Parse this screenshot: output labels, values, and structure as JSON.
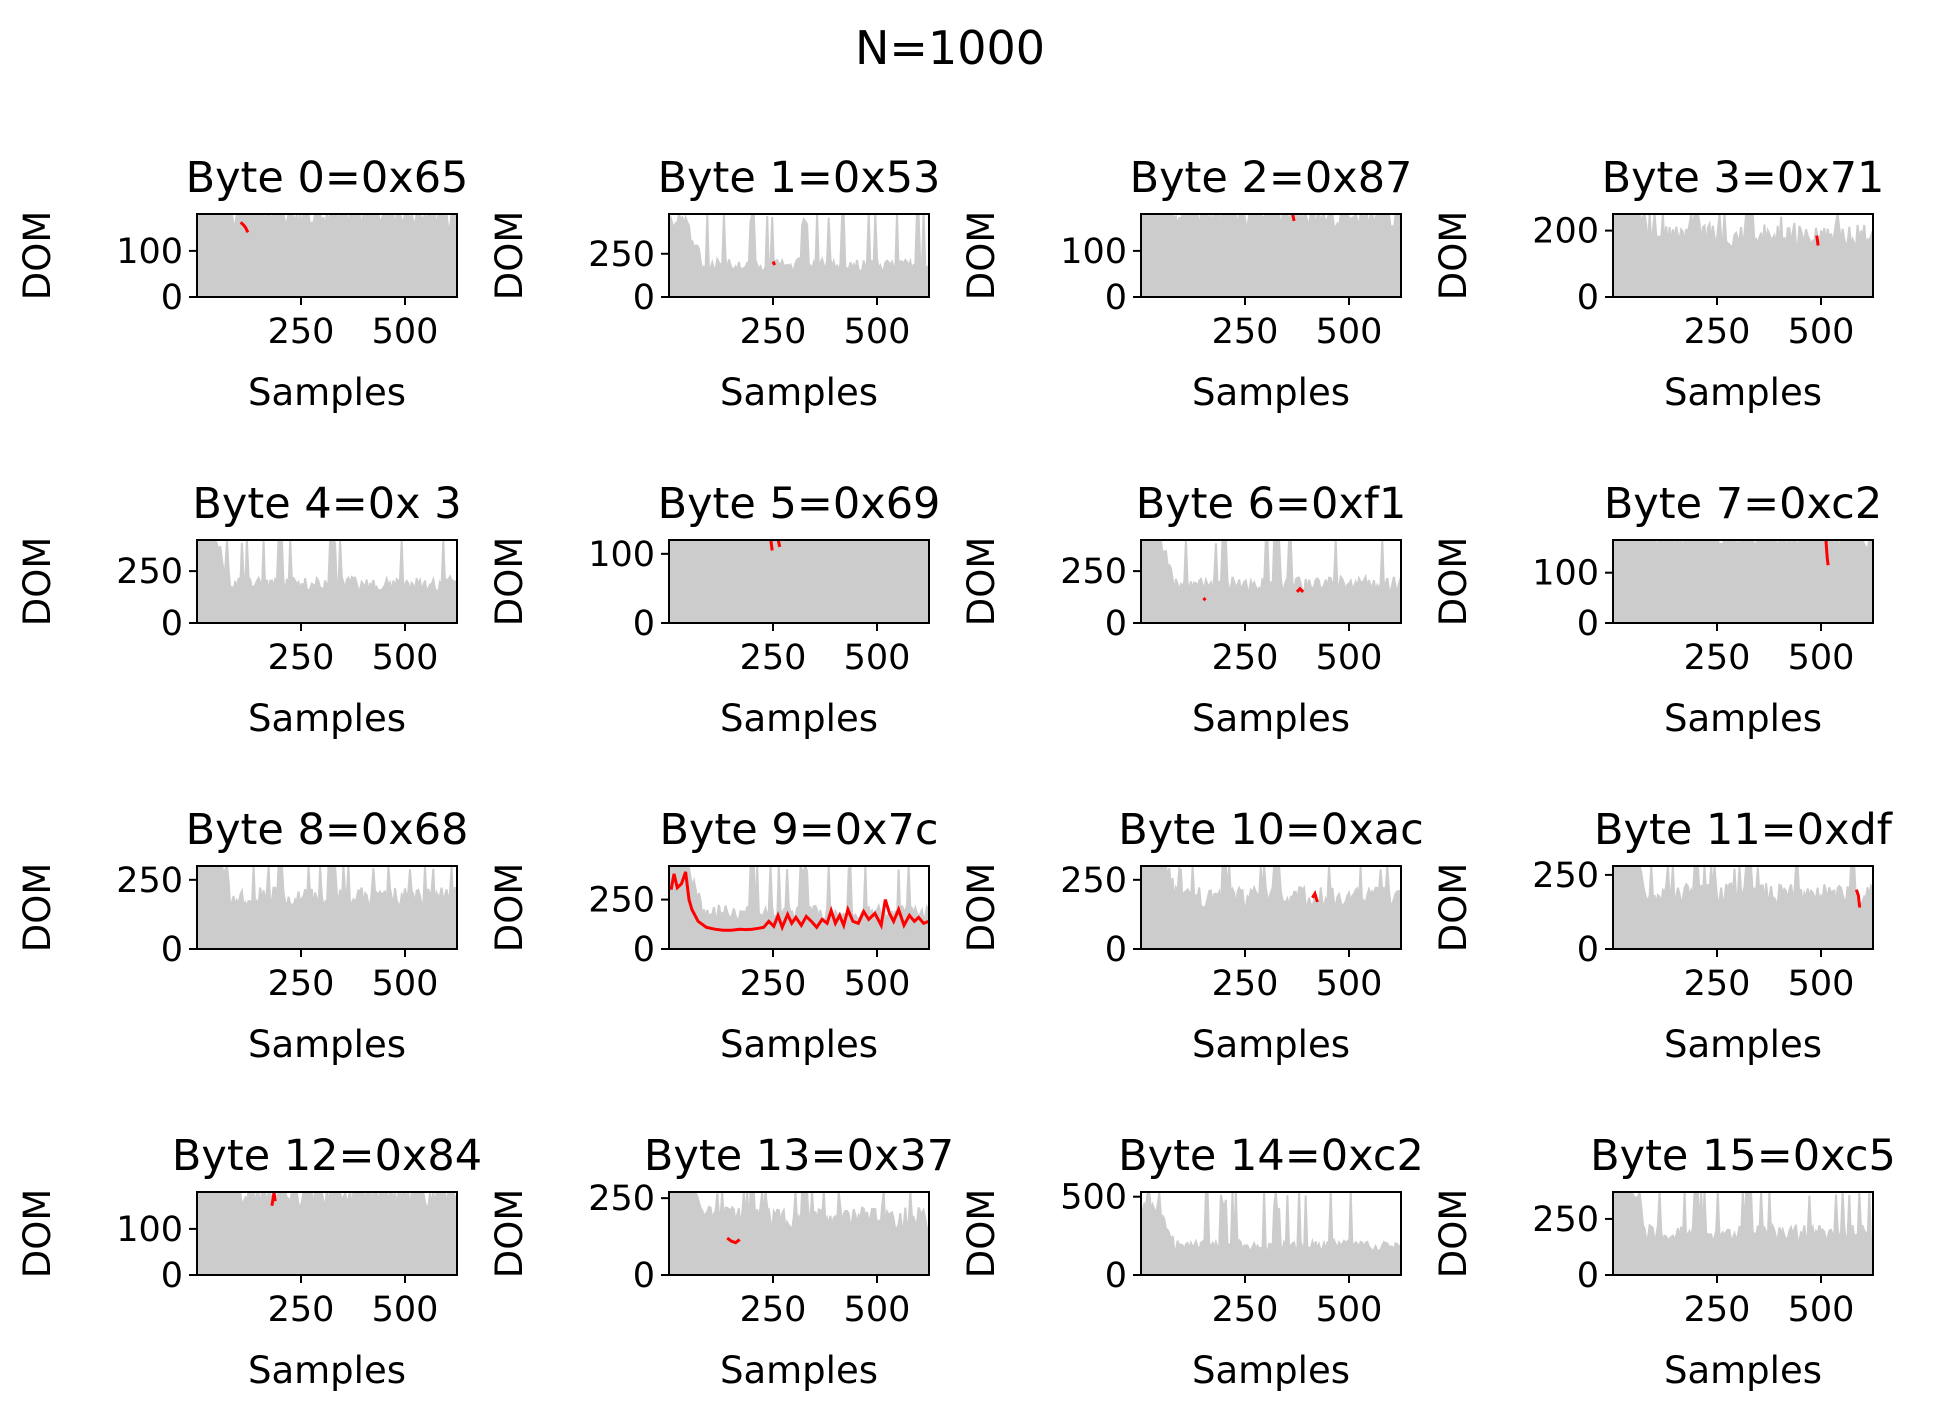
{
  "figure": {
    "suptitle": "N=1000"
  },
  "colors": {
    "wrong_keys": "#cccccc",
    "correct_key": "#ff0000",
    "axes": "#000000",
    "background": "#ffffff"
  },
  "chart_data": [
    {
      "type": "line",
      "title": "Byte 0=0x65",
      "xlabel": "Samples",
      "ylabel": "DOM",
      "xlim": [
        0,
        625
      ],
      "ylim": [
        0,
        180
      ],
      "xticks": [
        250,
        500
      ],
      "xtick_labels": [
        "250",
        "500"
      ],
      "yticks": [
        0,
        100
      ],
      "ytick_labels": [
        "0",
        "100"
      ],
      "grey_base": 170,
      "grey_floor": 150,
      "red": [
        {
          "x": [
            105,
            112,
            117,
            122
          ],
          "y": [
            162,
            156,
            150,
            140
          ]
        }
      ]
    },
    {
      "type": "line",
      "title": "Byte 1=0x53",
      "xlabel": "Samples",
      "ylabel": "DOM",
      "xlim": [
        0,
        625
      ],
      "ylim": [
        0,
        480
      ],
      "xticks": [
        250,
        500
      ],
      "xtick_labels": [
        "250",
        "500"
      ],
      "yticks": [
        0,
        250
      ],
      "ytick_labels": [
        "0",
        "250"
      ],
      "grey_base": 170,
      "grey_floor": 120,
      "red": [
        {
          "x": [
            250,
            254
          ],
          "y": [
            205,
            185
          ]
        }
      ]
    },
    {
      "type": "line",
      "title": "Byte 2=0x87",
      "xlabel": "Samples",
      "ylabel": "DOM",
      "xlim": [
        0,
        625
      ],
      "ylim": [
        0,
        180
      ],
      "xticks": [
        250,
        500
      ],
      "xtick_labels": [
        "250",
        "500"
      ],
      "yticks": [
        0,
        100
      ],
      "ytick_labels": [
        "0",
        "100"
      ],
      "grey_base": 170,
      "grey_floor": 150,
      "red": [
        {
          "x": [
            365,
            368
          ],
          "y": [
            178,
            165
          ]
        }
      ]
    },
    {
      "type": "line",
      "title": "Byte 3=0x71",
      "xlabel": "Samples",
      "ylabel": "DOM",
      "xlim": [
        0,
        625
      ],
      "ylim": [
        0,
        250
      ],
      "xticks": [
        250,
        500
      ],
      "xtick_labels": [
        "250",
        "500"
      ],
      "yticks": [
        0,
        200
      ],
      "ytick_labels": [
        "0",
        "200"
      ],
      "grey_base": 170,
      "grey_floor": 120,
      "red": [
        {
          "x": [
            490,
            493
          ],
          "y": [
            185,
            155
          ]
        }
      ]
    },
    {
      "type": "line",
      "title": "Byte 4=0x 3",
      "xlabel": "Samples",
      "ylabel": "DOM",
      "xlim": [
        0,
        625
      ],
      "ylim": [
        0,
        400
      ],
      "xticks": [
        250,
        500
      ],
      "xtick_labels": [
        "250",
        "500"
      ],
      "yticks": [
        0,
        250
      ],
      "ytick_labels": [
        "0",
        "250"
      ],
      "grey_base": 170,
      "grey_floor": 120,
      "red": []
    },
    {
      "type": "line",
      "title": "Byte 5=0x69",
      "xlabel": "Samples",
      "ylabel": "DOM",
      "xlim": [
        0,
        625
      ],
      "ylim": [
        0,
        120
      ],
      "xticks": [
        250,
        500
      ],
      "xtick_labels": [
        "250",
        "500"
      ],
      "yticks": [
        0,
        100
      ],
      "ytick_labels": [
        "0",
        "100"
      ],
      "grey_base": 170,
      "grey_floor": 150,
      "red": [
        {
          "x": [
            245,
            248
          ],
          "y": [
            119,
            105
          ]
        },
        {
          "x": [
            263,
            266
          ],
          "y": [
            119,
            110
          ]
        }
      ]
    },
    {
      "type": "line",
      "title": "Byte 6=0xf1",
      "xlabel": "Samples",
      "ylabel": "DOM",
      "xlim": [
        0,
        625
      ],
      "ylim": [
        0,
        400
      ],
      "xticks": [
        250,
        500
      ],
      "xtick_labels": [
        "250",
        "500"
      ],
      "yticks": [
        0,
        250
      ],
      "ytick_labels": [
        "0",
        "250"
      ],
      "grey_base": 170,
      "grey_floor": 120,
      "red": [
        {
          "x": [
            375,
            382,
            390
          ],
          "y": [
            150,
            165,
            150
          ]
        },
        {
          "x": [
            150,
            155
          ],
          "y": [
            120,
            110
          ]
        }
      ]
    },
    {
      "type": "line",
      "title": "Byte 7=0xc2",
      "xlabel": "Samples",
      "ylabel": "DOM",
      "xlim": [
        0,
        625
      ],
      "ylim": [
        0,
        165
      ],
      "xticks": [
        250,
        500
      ],
      "xtick_labels": [
        "250",
        "500"
      ],
      "yticks": [
        0,
        100
      ],
      "ytick_labels": [
        "0",
        "100"
      ],
      "grey_base": 170,
      "grey_floor": 150,
      "red": [
        {
          "x": [
            512,
            515,
            517
          ],
          "y": [
            163,
            130,
            115
          ]
        }
      ]
    },
    {
      "type": "line",
      "title": "Byte 8=0x68",
      "xlabel": "Samples",
      "ylabel": "DOM",
      "xlim": [
        0,
        625
      ],
      "ylim": [
        0,
        300
      ],
      "xticks": [
        250,
        500
      ],
      "xtick_labels": [
        "250",
        "500"
      ],
      "yticks": [
        0,
        250
      ],
      "ytick_labels": [
        "0",
        "250"
      ],
      "grey_base": 170,
      "grey_floor": 120,
      "red": []
    },
    {
      "type": "line",
      "title": "Byte 9=0x7c",
      "xlabel": "Samples",
      "ylabel": "DOM",
      "xlim": [
        0,
        625
      ],
      "ylim": [
        0,
        420
      ],
      "xticks": [
        250,
        500
      ],
      "xtick_labels": [
        "250",
        "500"
      ],
      "yticks": [
        0,
        250
      ],
      "ytick_labels": [
        "0",
        "250"
      ],
      "grey_base": 170,
      "grey_floor": 120,
      "red": [
        {
          "x": [
            5,
            12,
            20,
            30,
            40,
            48,
            55,
            70,
            90,
            110,
            130,
            150,
            170,
            185,
            200,
            215,
            228,
            240,
            252,
            262,
            272,
            285,
            295,
            305,
            318,
            330,
            342,
            355,
            368,
            380,
            390,
            400,
            410,
            420,
            430,
            442,
            455,
            468,
            480,
            495,
            510,
            520,
            530,
            540,
            552,
            565,
            578,
            590,
            600,
            612,
            625
          ],
          "y": [
            300,
            380,
            310,
            330,
            390,
            250,
            200,
            140,
            110,
            100,
            95,
            95,
            100,
            98,
            100,
            105,
            110,
            140,
            115,
            170,
            110,
            175,
            130,
            160,
            120,
            165,
            140,
            110,
            150,
            130,
            195,
            130,
            170,
            120,
            200,
            140,
            130,
            190,
            150,
            180,
            120,
            250,
            180,
            140,
            200,
            120,
            170,
            140,
            160,
            130,
            140
          ]
        }
      ]
    },
    {
      "type": "line",
      "title": "Byte 10=0xac",
      "xlabel": "Samples",
      "ylabel": "DOM",
      "xlim": [
        0,
        625
      ],
      "ylim": [
        0,
        300
      ],
      "xticks": [
        250,
        500
      ],
      "xtick_labels": [
        "250",
        "500"
      ],
      "yticks": [
        0,
        250
      ],
      "ytick_labels": [
        "0",
        "250"
      ],
      "grey_base": 170,
      "grey_floor": 120,
      "red": [
        {
          "x": [
            412,
            418,
            424
          ],
          "y": [
            185,
            200,
            170
          ]
        }
      ]
    },
    {
      "type": "line",
      "title": "Byte 11=0xdf",
      "xlabel": "Samples",
      "ylabel": "DOM",
      "xlim": [
        0,
        625
      ],
      "ylim": [
        0,
        280
      ],
      "xticks": [
        250,
        500
      ],
      "xtick_labels": [
        "250",
        "500"
      ],
      "yticks": [
        0,
        250
      ],
      "ytick_labels": [
        "0",
        "250"
      ],
      "grey_base": 170,
      "grey_floor": 120,
      "red": [
        {
          "x": [
            585,
            590,
            593
          ],
          "y": [
            200,
            180,
            140
          ]
        }
      ]
    },
    {
      "type": "line",
      "title": "Byte 12=0x84",
      "xlabel": "Samples",
      "ylabel": "DOM",
      "xlim": [
        0,
        625
      ],
      "ylim": [
        0,
        180
      ],
      "xticks": [
        250,
        500
      ],
      "xtick_labels": [
        "250",
        "500"
      ],
      "yticks": [
        0,
        100
      ],
      "ytick_labels": [
        "0",
        "100"
      ],
      "grey_base": 170,
      "grey_floor": 150,
      "red": [
        {
          "x": [
            180,
            185,
            188
          ],
          "y": [
            150,
            178,
            160
          ]
        }
      ]
    },
    {
      "type": "line",
      "title": "Byte 13=0x37",
      "xlabel": "Samples",
      "ylabel": "DOM",
      "xlim": [
        0,
        625
      ],
      "ylim": [
        0,
        270
      ],
      "xticks": [
        250,
        500
      ],
      "xtick_labels": [
        "250",
        "500"
      ],
      "yticks": [
        0,
        250
      ],
      "ytick_labels": [
        "0",
        "250"
      ],
      "grey_base": 170,
      "grey_floor": 120,
      "red": [
        {
          "x": [
            140,
            150,
            160,
            170
          ],
          "y": [
            120,
            110,
            105,
            115
          ]
        }
      ]
    },
    {
      "type": "line",
      "title": "Byte 14=0xc2",
      "xlabel": "Samples",
      "ylabel": "DOM",
      "xlim": [
        0,
        625
      ],
      "ylim": [
        0,
        530
      ],
      "xticks": [
        250,
        500
      ],
      "xtick_labels": [
        "250",
        "500"
      ],
      "yticks": [
        0,
        500
      ],
      "ytick_labels": [
        "0",
        "500"
      ],
      "grey_base": 170,
      "grey_floor": 120,
      "red": []
    },
    {
      "type": "line",
      "title": "Byte 15=0xc5",
      "xlabel": "Samples",
      "ylabel": "DOM",
      "xlim": [
        0,
        625
      ],
      "ylim": [
        0,
        370
      ],
      "xticks": [
        250,
        500
      ],
      "xtick_labels": [
        "250",
        "500"
      ],
      "yticks": [
        0,
        250
      ],
      "ytick_labels": [
        "0",
        "250"
      ],
      "grey_base": 170,
      "grey_floor": 120,
      "red": []
    }
  ]
}
